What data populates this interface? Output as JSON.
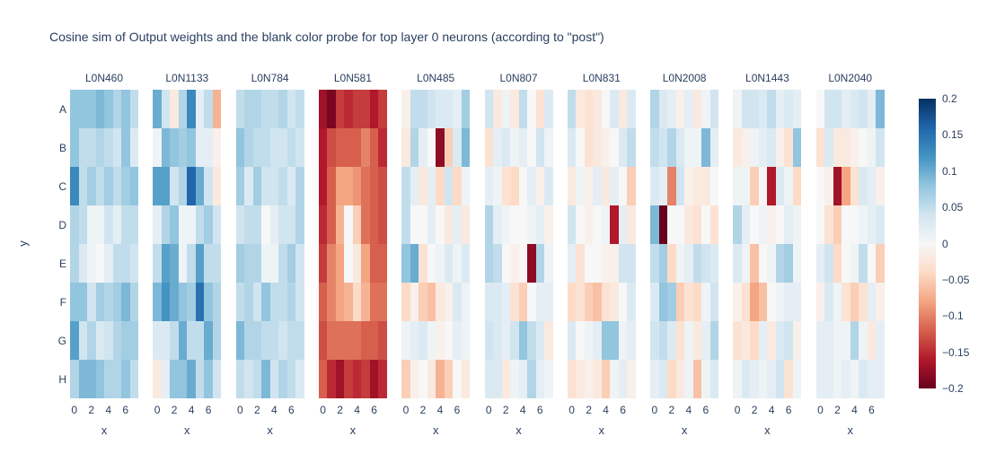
{
  "figure_title": "Cosine sim of Output weights and the blank color probe for top layer 0 neurons (according to \"post\")",
  "x_axis_label": "x",
  "y_axis_label": "y",
  "row_labels": [
    "A",
    "B",
    "C",
    "D",
    "E",
    "F",
    "G",
    "H"
  ],
  "x_ticks": {
    "values": [
      0,
      2,
      4,
      6
    ],
    "labels": [
      "0",
      "2",
      "4",
      "6"
    ]
  },
  "colorbar": {
    "tick_labels": [
      "0.2",
      "0.15",
      "0.1",
      "0.05",
      "0",
      "−0.05",
      "−0.1",
      "−0.15",
      "−0.2"
    ],
    "tick_values": [
      0.2,
      0.15,
      0.1,
      0.05,
      0,
      -0.05,
      -0.1,
      -0.15,
      -0.2
    ]
  },
  "text_color": "#2a3f5f",
  "chart_data": {
    "type": "heatmap",
    "title": "Cosine sim of Output weights and the blank color probe for top layer 0 neurons (according to \"post\")",
    "xlabel": "x",
    "ylabel": "y",
    "x": [
      0,
      1,
      2,
      3,
      4,
      5,
      6,
      7
    ],
    "y_categories": [
      "A",
      "B",
      "C",
      "D",
      "E",
      "F",
      "G",
      "H"
    ],
    "zmin": -0.2,
    "zmax": 0.2,
    "legend_position": "right-colorbar",
    "grid": false,
    "colorscale_rdbu": [
      [
        0.0,
        "#67001f"
      ],
      [
        0.1,
        "#b2182b"
      ],
      [
        0.2,
        "#d6604d"
      ],
      [
        0.3,
        "#f4a582"
      ],
      [
        0.4,
        "#fddbc7"
      ],
      [
        0.5,
        "#f7f7f7"
      ],
      [
        0.6,
        "#d1e5f0"
      ],
      [
        0.7,
        "#92c5de"
      ],
      [
        0.8,
        "#4393c3"
      ],
      [
        0.9,
        "#2166ac"
      ],
      [
        1.0,
        "#053061"
      ]
    ],
    "series": [
      {
        "name": "L0N460",
        "values": [
          [
            0.08,
            0.08,
            0.08,
            0.09,
            0.08,
            0.06,
            0.08,
            0.05
          ],
          [
            0.08,
            0.05,
            0.05,
            0.06,
            0.05,
            0.04,
            0.08,
            0.03
          ],
          [
            0.13,
            0.05,
            0.07,
            0.05,
            0.07,
            0.05,
            0.07,
            0.08
          ],
          [
            0.06,
            0.05,
            0.01,
            0.01,
            0.04,
            0.02,
            0.05,
            0.05
          ],
          [
            0.06,
            0.03,
            0.01,
            0.0,
            0.02,
            0.05,
            0.05,
            0.04
          ],
          [
            0.08,
            0.08,
            0.04,
            0.07,
            0.06,
            0.07,
            0.09,
            0.06
          ],
          [
            0.11,
            0.04,
            0.06,
            0.03,
            0.04,
            0.06,
            0.07,
            0.07
          ],
          [
            0.06,
            0.09,
            0.09,
            0.08,
            0.06,
            0.06,
            0.08,
            0.05
          ]
        ]
      },
      {
        "name": "L0N1133",
        "values": [
          [
            0.1,
            0.04,
            -0.02,
            0.06,
            0.13,
            0.02,
            0.05,
            -0.07
          ],
          [
            0.01,
            0.09,
            0.08,
            0.07,
            0.08,
            0.02,
            0.02,
            -0.01
          ],
          [
            0.11,
            0.11,
            0.04,
            0.06,
            0.16,
            0.1,
            0.04,
            -0.02
          ],
          [
            0.02,
            0.06,
            0.08,
            0.01,
            0.01,
            0.05,
            0.07,
            0.04
          ],
          [
            0.05,
            0.11,
            0.1,
            0.01,
            0.05,
            0.11,
            0.05,
            0.05
          ],
          [
            0.09,
            0.12,
            0.1,
            0.08,
            0.07,
            0.15,
            0.08,
            0.06
          ],
          [
            0.03,
            0.03,
            0.05,
            0.1,
            0.05,
            0.05,
            0.1,
            0.06
          ],
          [
            -0.02,
            0.02,
            0.08,
            0.08,
            0.1,
            0.05,
            0.08,
            0.04
          ]
        ]
      },
      {
        "name": "L0N784",
        "values": [
          [
            0.05,
            0.06,
            0.06,
            0.05,
            0.05,
            0.06,
            0.04,
            0.05
          ],
          [
            0.08,
            0.06,
            0.05,
            0.05,
            0.04,
            0.04,
            0.05,
            0.04
          ],
          [
            0.07,
            0.03,
            0.07,
            0.04,
            0.04,
            0.05,
            0.03,
            0.06
          ],
          [
            0.04,
            0.05,
            0.05,
            0.0,
            0.02,
            0.04,
            0.04,
            0.06
          ],
          [
            0.07,
            0.06,
            0.06,
            0.01,
            0.01,
            0.05,
            0.07,
            0.04
          ],
          [
            0.05,
            0.06,
            0.04,
            0.08,
            0.05,
            0.05,
            0.06,
            0.04
          ],
          [
            0.09,
            0.06,
            0.06,
            0.05,
            0.05,
            0.04,
            0.05,
            0.05
          ],
          [
            0.05,
            0.04,
            0.05,
            0.09,
            0.04,
            0.06,
            0.05,
            0.03
          ]
        ]
      },
      {
        "name": "L0N581",
        "values": [
          [
            -0.17,
            -0.19,
            -0.14,
            -0.15,
            -0.14,
            -0.14,
            -0.16,
            -0.14
          ],
          [
            -0.16,
            -0.13,
            -0.12,
            -0.12,
            -0.12,
            -0.1,
            -0.12,
            -0.15
          ],
          [
            -0.16,
            -0.12,
            -0.08,
            -0.08,
            -0.09,
            -0.11,
            -0.12,
            -0.13
          ],
          [
            -0.15,
            -0.12,
            -0.07,
            0.0,
            -0.05,
            -0.11,
            -0.12,
            -0.13
          ],
          [
            -0.14,
            -0.1,
            -0.08,
            0.0,
            -0.02,
            -0.08,
            -0.12,
            -0.12
          ],
          [
            -0.12,
            -0.1,
            -0.08,
            -0.07,
            -0.04,
            -0.07,
            -0.11,
            -0.11
          ],
          [
            -0.13,
            -0.11,
            -0.11,
            -0.11,
            -0.11,
            -0.12,
            -0.12,
            -0.13
          ],
          [
            -0.12,
            -0.15,
            -0.17,
            -0.14,
            -0.15,
            -0.14,
            -0.17,
            -0.15
          ]
        ]
      },
      {
        "name": "L0N485",
        "values": [
          [
            -0.01,
            0.05,
            0.05,
            0.04,
            0.03,
            0.03,
            0.02,
            0.07
          ],
          [
            -0.02,
            0.06,
            0.02,
            0.0,
            -0.18,
            -0.05,
            0.03,
            0.09
          ],
          [
            0.05,
            0.02,
            -0.02,
            0.02,
            -0.04,
            0.04,
            -0.04,
            0.01
          ],
          [
            0.05,
            0.0,
            0.0,
            0.02,
            0.0,
            -0.02,
            0.02,
            -0.02
          ],
          [
            0.08,
            0.1,
            -0.03,
            0.0,
            0.01,
            0.03,
            0.01,
            0.03
          ],
          [
            -0.04,
            -0.01,
            -0.05,
            -0.06,
            -0.02,
            -0.01,
            0.03,
            0.01
          ],
          [
            0.01,
            0.02,
            0.03,
            0.01,
            -0.01,
            0.0,
            0.02,
            0.01
          ],
          [
            -0.05,
            -0.01,
            0.0,
            -0.02,
            -0.07,
            -0.05,
            0.0,
            -0.02
          ]
        ]
      },
      {
        "name": "L0N807",
        "values": [
          [
            0.04,
            -0.02,
            0.01,
            -0.02,
            0.05,
            0.0,
            -0.03,
            0.03
          ],
          [
            -0.03,
            0.02,
            0.03,
            0.01,
            0.02,
            0.0,
            0.04,
            0.01
          ],
          [
            0.02,
            0.01,
            -0.03,
            -0.04,
            0.0,
            0.02,
            -0.01,
            0.03
          ],
          [
            0.06,
            0.02,
            0.01,
            0.0,
            0.0,
            0.01,
            0.02,
            -0.01
          ],
          [
            0.06,
            0.05,
            0.0,
            -0.01,
            0.0,
            -0.18,
            0.06,
            0.01
          ],
          [
            0.03,
            0.03,
            0.02,
            -0.03,
            -0.05,
            0.0,
            0.02,
            0.02
          ],
          [
            0.04,
            0.03,
            0.02,
            0.04,
            0.08,
            0.05,
            0.03,
            -0.02
          ],
          [
            0.03,
            0.03,
            -0.02,
            0.01,
            0.02,
            0.06,
            0.02,
            0.01
          ]
        ]
      },
      {
        "name": "L0N831",
        "values": [
          [
            0.05,
            -0.02,
            -0.03,
            -0.02,
            0.0,
            0.03,
            -0.02,
            0.03
          ],
          [
            0.03,
            0.0,
            -0.03,
            -0.02,
            -0.01,
            0.0,
            0.03,
            0.05
          ],
          [
            -0.02,
            0.01,
            -0.01,
            0.02,
            -0.02,
            0.02,
            0.0,
            -0.05
          ],
          [
            0.04,
            0.0,
            -0.01,
            0.0,
            0.01,
            -0.16,
            0.02,
            -0.02
          ],
          [
            0.02,
            -0.03,
            0.0,
            0.0,
            -0.01,
            -0.01,
            0.04,
            0.04
          ],
          [
            -0.04,
            -0.03,
            -0.05,
            -0.06,
            -0.03,
            -0.02,
            0.0,
            0.03
          ],
          [
            0.03,
            0.0,
            0.01,
            0.02,
            0.08,
            0.08,
            0.01,
            0.02
          ],
          [
            -0.03,
            -0.02,
            -0.01,
            -0.02,
            -0.05,
            0.01,
            0.02,
            -0.01
          ]
        ]
      },
      {
        "name": "L0N2008",
        "values": [
          [
            0.06,
            0.03,
            0.02,
            -0.01,
            0.02,
            -0.02,
            0.01,
            0.04
          ],
          [
            0.05,
            0.04,
            0.06,
            0.03,
            0.01,
            0.01,
            0.09,
            0.02
          ],
          [
            0.03,
            0.02,
            -0.1,
            0.04,
            -0.01,
            -0.02,
            -0.02,
            0.0
          ],
          [
            0.09,
            -0.2,
            0.0,
            0.0,
            -0.02,
            -0.03,
            0.0,
            -0.03
          ],
          [
            0.05,
            0.07,
            -0.04,
            0.01,
            0.02,
            0.05,
            0.04,
            0.03
          ],
          [
            0.03,
            0.08,
            0.07,
            -0.05,
            -0.03,
            -0.04,
            0.01,
            0.04
          ],
          [
            0.04,
            0.05,
            0.03,
            -0.03,
            0.01,
            -0.02,
            0.02,
            0.06
          ],
          [
            0.02,
            0.03,
            -0.04,
            -0.02,
            0.01,
            -0.06,
            0.01,
            0.03
          ]
        ]
      },
      {
        "name": "L0N1443",
        "values": [
          [
            0.01,
            0.04,
            0.04,
            0.03,
            0.05,
            0.02,
            0.03,
            0.02
          ],
          [
            -0.02,
            -0.01,
            0.01,
            0.02,
            0.03,
            -0.01,
            -0.03,
            0.08
          ],
          [
            0.01,
            0.01,
            -0.05,
            0.0,
            -0.16,
            0.03,
            0.01,
            -0.04
          ],
          [
            0.06,
            0.02,
            0.0,
            0.01,
            -0.01,
            0.0,
            0.02,
            0.01
          ],
          [
            0.03,
            0.01,
            -0.06,
            0.0,
            0.01,
            0.06,
            0.07,
            0.01
          ],
          [
            -0.01,
            -0.03,
            -0.08,
            -0.06,
            0.0,
            0.01,
            0.02,
            0.02
          ],
          [
            -0.03,
            -0.02,
            -0.04,
            0.02,
            -0.02,
            0.03,
            0.04,
            -0.01
          ],
          [
            0.01,
            0.03,
            0.02,
            0.01,
            0.02,
            0.04,
            -0.03,
            0.01
          ]
        ]
      },
      {
        "name": "L0N2040",
        "values": [
          [
            0.0,
            0.04,
            0.04,
            0.02,
            0.03,
            0.04,
            0.02,
            0.09
          ],
          [
            -0.03,
            0.03,
            -0.02,
            -0.02,
            -0.01,
            0.0,
            0.01,
            0.04
          ],
          [
            0.0,
            -0.01,
            -0.17,
            -0.08,
            -0.03,
            0.03,
            0.02,
            -0.01
          ],
          [
            0.0,
            -0.03,
            -0.05,
            0.0,
            0.0,
            0.01,
            0.02,
            0.03
          ],
          [
            0.02,
            0.04,
            -0.04,
            0.0,
            0.01,
            0.05,
            0.0,
            -0.05
          ],
          [
            -0.01,
            0.03,
            0.01,
            -0.03,
            -0.05,
            -0.03,
            0.02,
            -0.01
          ],
          [
            0.02,
            0.02,
            0.01,
            0.01,
            0.06,
            0.01,
            -0.02,
            0.02
          ],
          [
            0.02,
            0.02,
            0.01,
            0.02,
            0.01,
            0.03,
            0.02,
            0.02
          ]
        ]
      }
    ]
  }
}
